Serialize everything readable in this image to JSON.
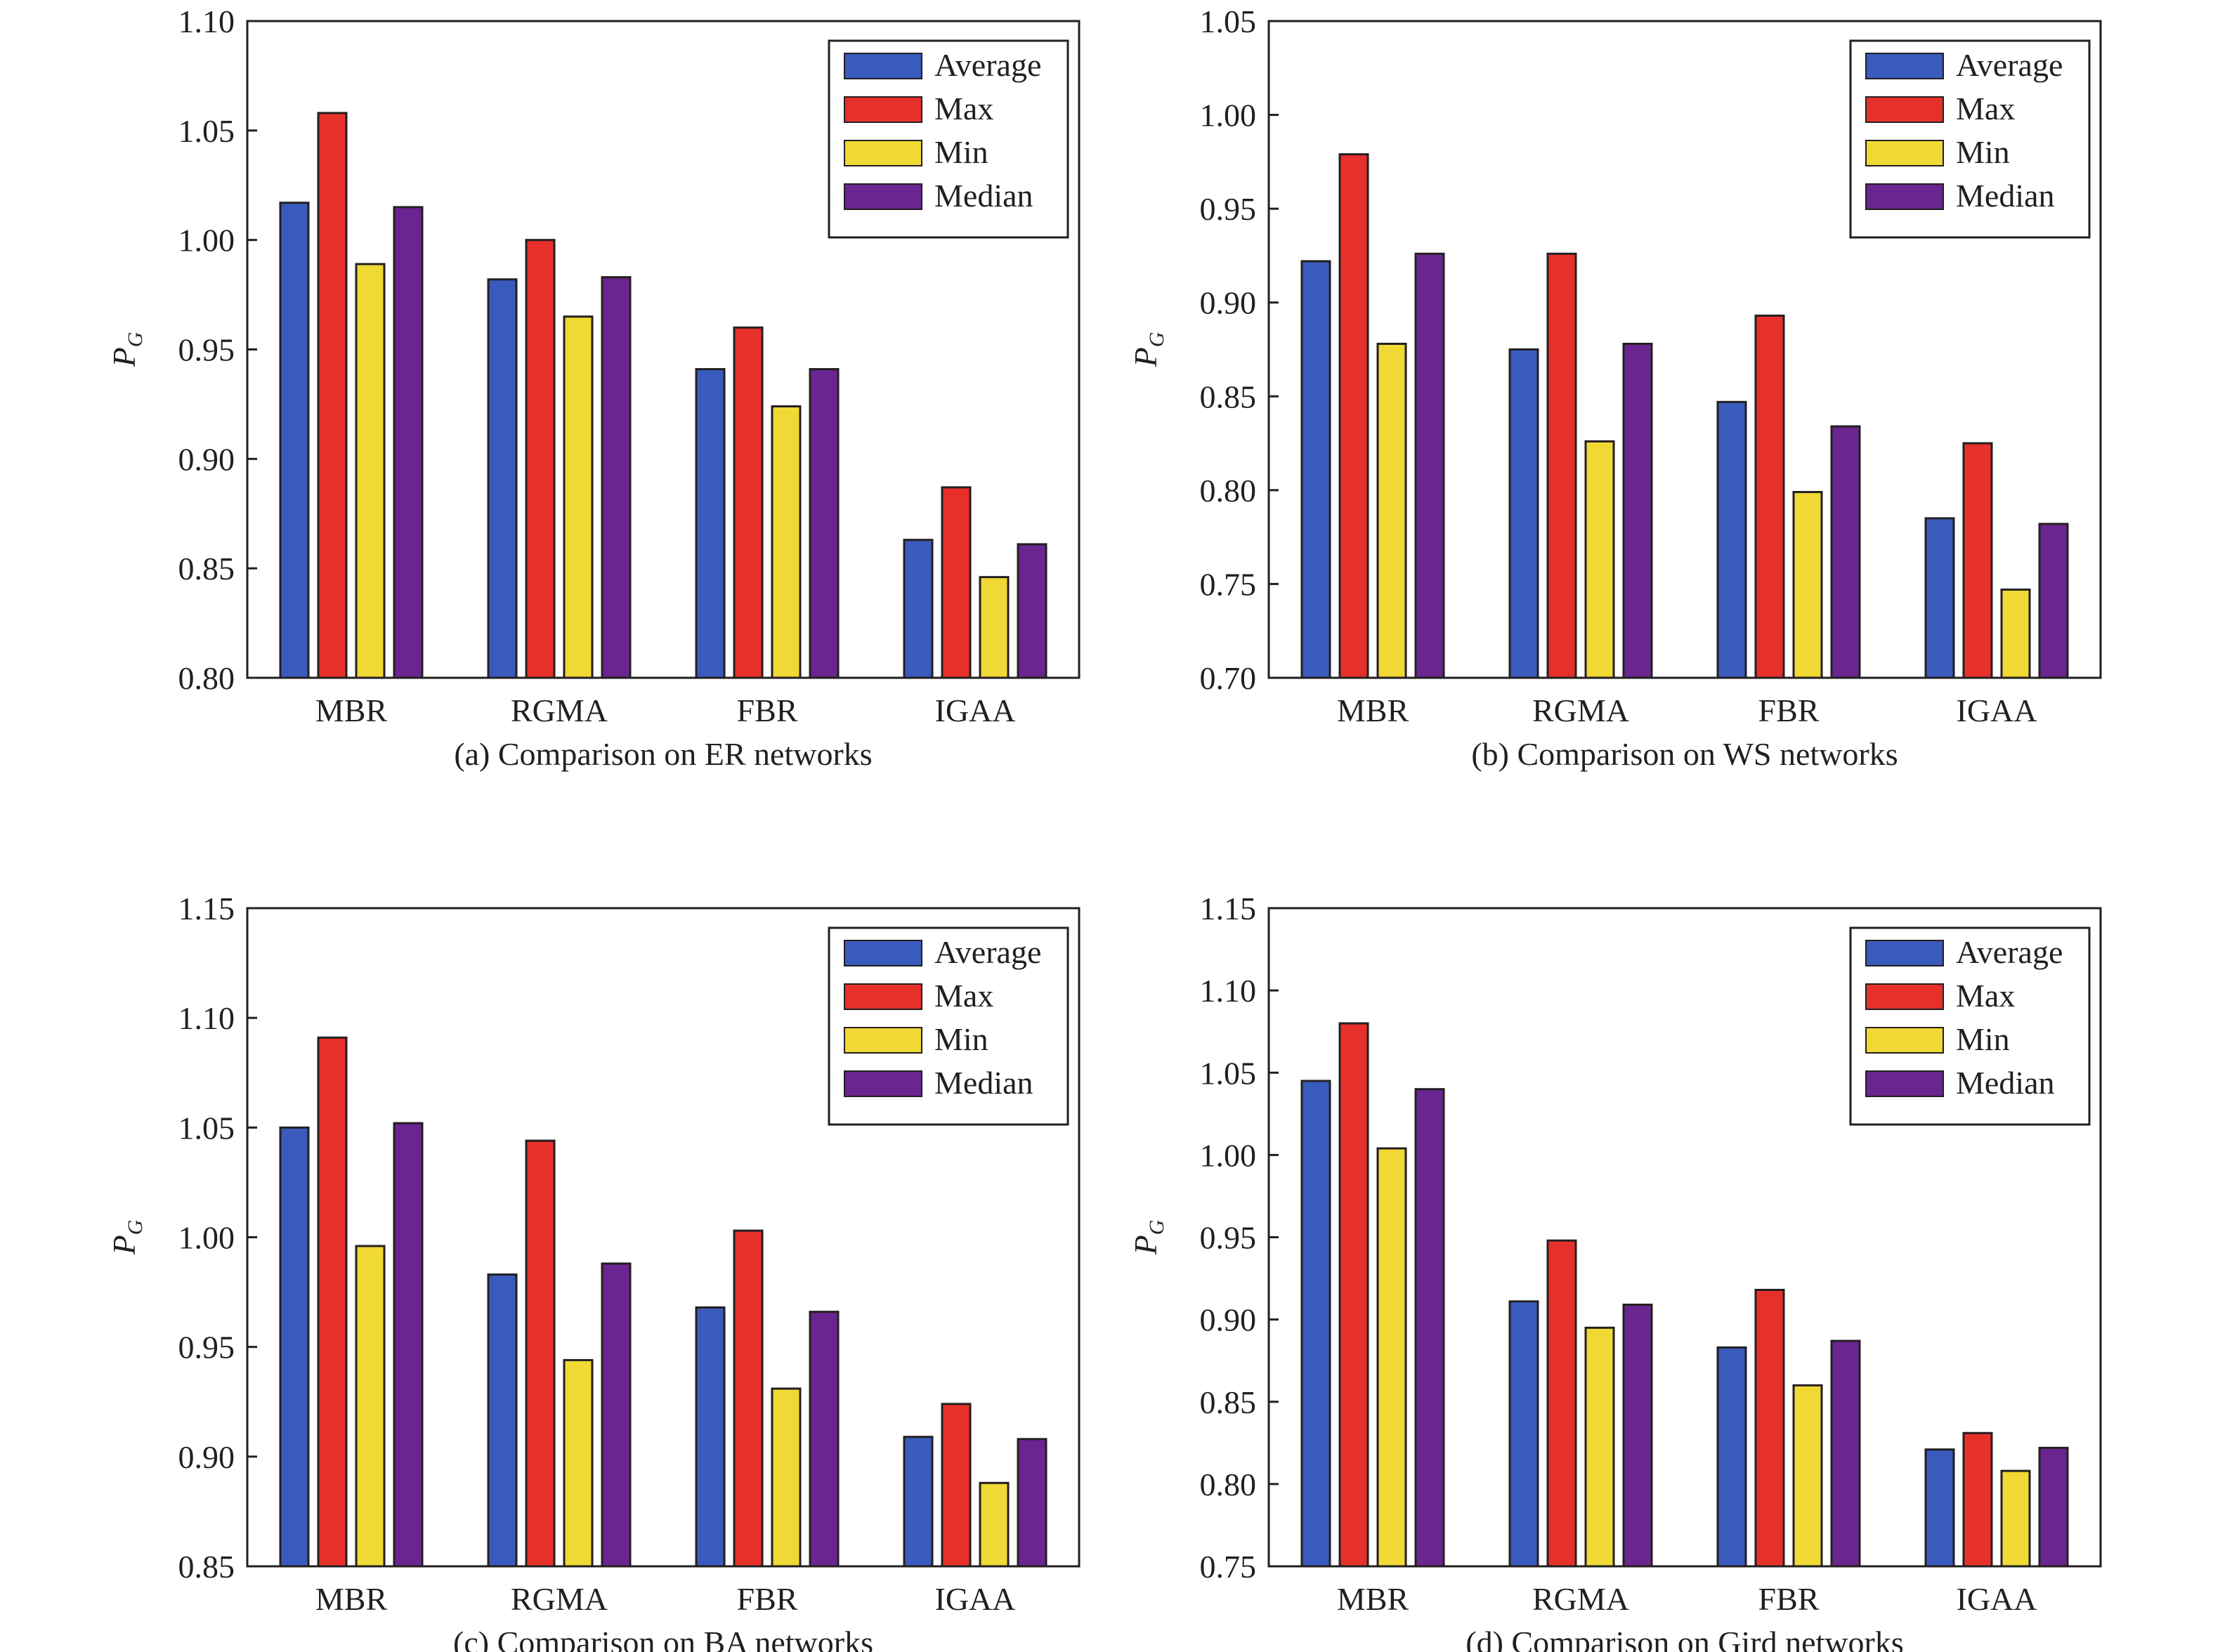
{
  "chart_data": [
    {
      "type": "bar",
      "caption": "(a) Comparison on ER networks",
      "ylabel_main": "P",
      "ylabel_sub": "G",
      "ylim": [
        0.8,
        1.1
      ],
      "yticks": [
        "0.80",
        "0.85",
        "0.90",
        "0.95",
        "1.00",
        "1.05",
        "1.10"
      ],
      "categories": [
        "MBR",
        "RGMA",
        "FBR",
        "IGAA"
      ],
      "legend_position": "top-right",
      "series": [
        {
          "name": "Average",
          "color": "#3a5bbd",
          "values": [
            1.017,
            0.982,
            0.941,
            0.863
          ]
        },
        {
          "name": "Max",
          "color": "#e8302b",
          "values": [
            1.058,
            1.0,
            0.96,
            0.887
          ]
        },
        {
          "name": "Min",
          "color": "#f0d835",
          "values": [
            0.989,
            0.965,
            0.924,
            0.846
          ]
        },
        {
          "name": "Median",
          "color": "#6b2590",
          "values": [
            1.015,
            0.983,
            0.941,
            0.861
          ]
        }
      ]
    },
    {
      "type": "bar",
      "caption": "(b) Comparison on WS networks",
      "ylabel_main": "P",
      "ylabel_sub": "G",
      "ylim": [
        0.7,
        1.05
      ],
      "yticks": [
        "0.70",
        "0.75",
        "0.80",
        "0.85",
        "0.90",
        "0.95",
        "1.00",
        "1.05"
      ],
      "categories": [
        "MBR",
        "RGMA",
        "FBR",
        "IGAA"
      ],
      "legend_position": "top-right",
      "series": [
        {
          "name": "Average",
          "color": "#3a5bbd",
          "values": [
            0.922,
            0.875,
            0.847,
            0.785
          ]
        },
        {
          "name": "Max",
          "color": "#e8302b",
          "values": [
            0.979,
            0.926,
            0.893,
            0.825
          ]
        },
        {
          "name": "Min",
          "color": "#f0d835",
          "values": [
            0.878,
            0.826,
            0.799,
            0.747
          ]
        },
        {
          "name": "Median",
          "color": "#6b2590",
          "values": [
            0.926,
            0.878,
            0.834,
            0.782
          ]
        }
      ]
    },
    {
      "type": "bar",
      "caption": "(c) Comparison on BA networks",
      "ylabel_main": "P",
      "ylabel_sub": "G",
      "ylim": [
        0.85,
        1.15
      ],
      "yticks": [
        "0.85",
        "0.90",
        "0.95",
        "1.00",
        "1.05",
        "1.10",
        "1.15"
      ],
      "categories": [
        "MBR",
        "RGMA",
        "FBR",
        "IGAA"
      ],
      "legend_position": "top-right",
      "series": [
        {
          "name": "Average",
          "color": "#3a5bbd",
          "values": [
            1.05,
            0.983,
            0.968,
            0.909
          ]
        },
        {
          "name": "Max",
          "color": "#e8302b",
          "values": [
            1.091,
            1.044,
            1.003,
            0.924
          ]
        },
        {
          "name": "Min",
          "color": "#f0d835",
          "values": [
            0.996,
            0.944,
            0.931,
            0.888
          ]
        },
        {
          "name": "Median",
          "color": "#6b2590",
          "values": [
            1.052,
            0.988,
            0.966,
            0.908
          ]
        }
      ]
    },
    {
      "type": "bar",
      "caption": "(d) Comparison on Gird networks",
      "ylabel_main": "P",
      "ylabel_sub": "G",
      "ylim": [
        0.75,
        1.15
      ],
      "yticks": [
        "0.75",
        "0.80",
        "0.85",
        "0.90",
        "0.95",
        "1.00",
        "1.05",
        "1.10",
        "1.15"
      ],
      "categories": [
        "MBR",
        "RGMA",
        "FBR",
        "IGAA"
      ],
      "legend_position": "top-right",
      "series": [
        {
          "name": "Average",
          "color": "#3a5bbd",
          "values": [
            1.045,
            0.911,
            0.883,
            0.821
          ]
        },
        {
          "name": "Max",
          "color": "#e8302b",
          "values": [
            1.08,
            0.948,
            0.918,
            0.831
          ]
        },
        {
          "name": "Min",
          "color": "#f0d835",
          "values": [
            1.004,
            0.895,
            0.86,
            0.808
          ]
        },
        {
          "name": "Median",
          "color": "#6b2590",
          "values": [
            1.04,
            0.909,
            0.887,
            0.822
          ]
        }
      ]
    }
  ]
}
